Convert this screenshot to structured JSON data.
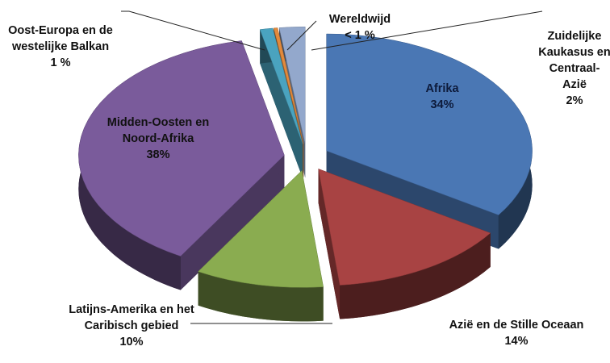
{
  "chart_data": {
    "type": "pie3d",
    "categories": [
      "Afrika",
      "Azië en de Stille Oceaan",
      "Latijns-Amerika en het Caribisch gebied",
      "Midden-Oosten en Noord-Afrika",
      "Oost-Europa en de westelijke Balkan",
      "Wereldwijd",
      "Zuidelijke Kaukasus en Centraal-Azië"
    ],
    "values": [
      34,
      14,
      10,
      38,
      1,
      0.3,
      2
    ],
    "value_labels": [
      "34%",
      "14%",
      "10%",
      "38%",
      "1 %",
      "< 1 %",
      "2%"
    ],
    "colors": [
      "#4a77b4",
      "#a84343",
      "#8aac50",
      "#7a5b9b",
      "#4aa3bf",
      "#e28a3c",
      "#93a8cc"
    ]
  }
}
